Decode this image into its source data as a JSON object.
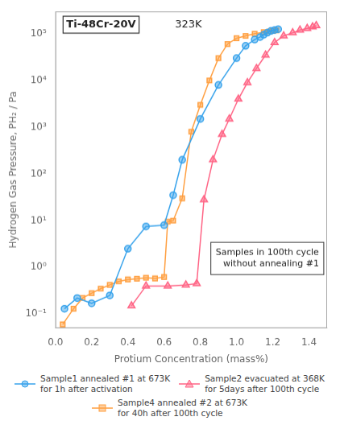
{
  "chart_data": {
    "type": "line",
    "title": "Ti-48Cr-20V",
    "subtitle": "323K",
    "xlabel": "Protium Concentration (mass%)",
    "ylabel": "Hydrogen Gas Pressure, PH₂ / Pa",
    "annotation": "Samples in 100th cycle\nwithout annealing #1",
    "log": "y",
    "grid": false,
    "legend": "bottom",
    "xlim": [
      0.0,
      1.5
    ],
    "xticks": [
      {
        "value": 0.0,
        "label": "0.0"
      },
      0.2,
      0.4,
      0.6,
      0.8,
      {
        "value": 1.0,
        "label": "1.0"
      },
      1.2,
      1.4
    ],
    "ylim": [
      0.05,
      300000
    ],
    "yticks": [
      {
        "value": 0.1,
        "label": "10⁻¹"
      },
      {
        "value": 1,
        "label": "10⁰"
      },
      {
        "value": 10,
        "label": "10¹"
      },
      {
        "value": 100,
        "label": "10²"
      },
      {
        "value": 1000,
        "label": "10³"
      },
      {
        "value": 10000,
        "label": "10⁴"
      },
      {
        "value": 100000,
        "label": "10⁵"
      }
    ],
    "series": [
      {
        "name": "Sample1 annealed #1 at 673K\nfor 1h after activation",
        "marker": "circle",
        "line_style": "solid",
        "x": [
          0.05,
          0.12,
          0.2,
          0.3,
          0.4,
          0.5,
          0.6,
          0.65,
          0.7,
          0.8,
          0.9,
          1.0,
          1.05,
          1.1,
          1.13,
          1.15,
          1.17,
          1.19,
          1.21,
          1.23
        ],
        "values": [
          0.13,
          0.22,
          0.17,
          0.25,
          2.5,
          7.5,
          8.0,
          35.0,
          200.0,
          1500.0,
          8000.0,
          30000.0,
          55000.0,
          75000.0,
          85000.0,
          95000.0,
          105000.0,
          115000.0,
          120000.0,
          125000.0
        ]
      },
      {
        "name": "Sample2 evacuated at 368K\nfor 5days after 100th cycle",
        "marker": "triangle",
        "line_style": "solid",
        "x": [
          0.42,
          0.5,
          0.62,
          0.72,
          0.78,
          0.82,
          0.87,
          0.92,
          0.96,
          1.01,
          1.06,
          1.11,
          1.16,
          1.21,
          1.26,
          1.31,
          1.35,
          1.39,
          1.42,
          1.44
        ],
        "values": [
          0.15,
          0.4,
          0.4,
          0.42,
          0.45,
          28.0,
          200.0,
          700.0,
          1500.0,
          4000.0,
          9000.0,
          18000.0,
          35000.0,
          65000.0,
          90000.0,
          105000.0,
          120000.0,
          130000.0,
          140000.0,
          150000.0
        ]
      },
      {
        "name": "Sample4 annealed #2 at 673K\nfor 40h after 100th cycle",
        "marker": "square",
        "line_style": "solid",
        "x": [
          0.04,
          0.1,
          0.15,
          0.2,
          0.25,
          0.3,
          0.35,
          0.4,
          0.45,
          0.5,
          0.55,
          0.6,
          0.62,
          0.65,
          0.7,
          0.75,
          0.8,
          0.85,
          0.9,
          0.95,
          1.0,
          1.05,
          1.1,
          1.15,
          1.18,
          1.2,
          1.22
        ],
        "values": [
          0.06,
          0.13,
          0.22,
          0.28,
          0.35,
          0.42,
          0.5,
          0.55,
          0.57,
          0.6,
          0.58,
          0.62,
          9.5,
          10.0,
          30.0,
          800.0,
          3000.0,
          10000.0,
          30000.0,
          60000.0,
          80000.0,
          90000.0,
          100000.0,
          108000.0,
          112000.0,
          115000.0,
          118000.0
        ]
      }
    ]
  }
}
